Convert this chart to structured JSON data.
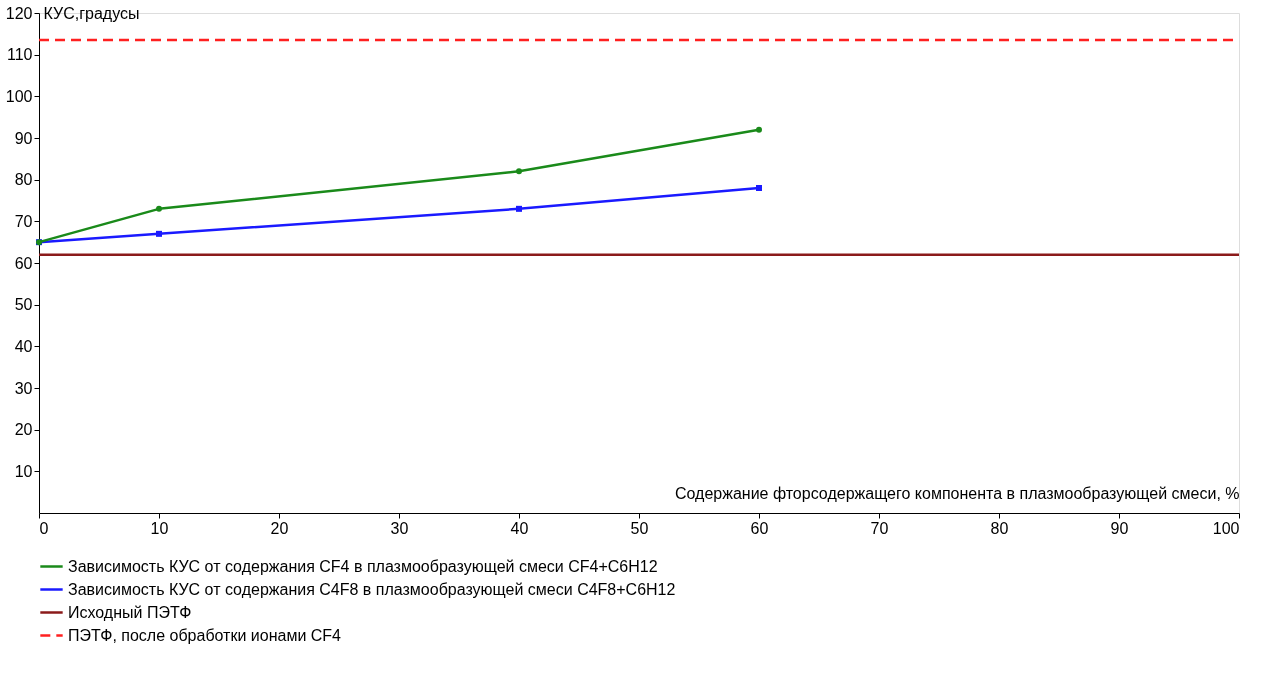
{
  "chart_data": {
    "type": "line",
    "ylabel": "КУС,градусы",
    "xlabel": "Содержание фторсодержащего компонента в плазмообразующей смеси, %",
    "xlim": [
      0,
      100
    ],
    "xticks": [
      0,
      10,
      20,
      30,
      40,
      50,
      60,
      70,
      80,
      90,
      100
    ],
    "ylim": [
      0,
      120
    ],
    "yticks": [
      10,
      20,
      30,
      40,
      50,
      60,
      70,
      80,
      90,
      100,
      110,
      120
    ],
    "grid": false,
    "legend": "bottom",
    "series": [
      {
        "name": "Зависимость КУС от содержания CF4 в плазмообразующей смеси CF4+C6H12",
        "color": "#1a8a1a",
        "x": [
          0,
          10,
          40,
          60
        ],
        "values": [
          65,
          73,
          82,
          92
        ],
        "marker": "circle",
        "line_style": "solid"
      },
      {
        "name": "Зависимость КУС от содержания C4F8 в плазмообразующей смеси C4F8+C6H12",
        "color": "#1a1aff",
        "x": [
          0,
          10,
          40,
          60
        ],
        "values": [
          65,
          67,
          73,
          78
        ],
        "marker": "square",
        "line_style": "solid"
      },
      {
        "name": "Исходный ПЭТФ",
        "color": "#8b1a1a",
        "x": [
          0,
          100
        ],
        "values": [
          62,
          62
        ],
        "marker": "none",
        "line_style": "solid"
      },
      {
        "name": "ПЭТФ, после обработки ионами CF4",
        "color": "#ff2020",
        "x": [
          0,
          100
        ],
        "values": [
          113.5,
          113.5
        ],
        "marker": "none",
        "line_style": "dashed"
      }
    ]
  }
}
